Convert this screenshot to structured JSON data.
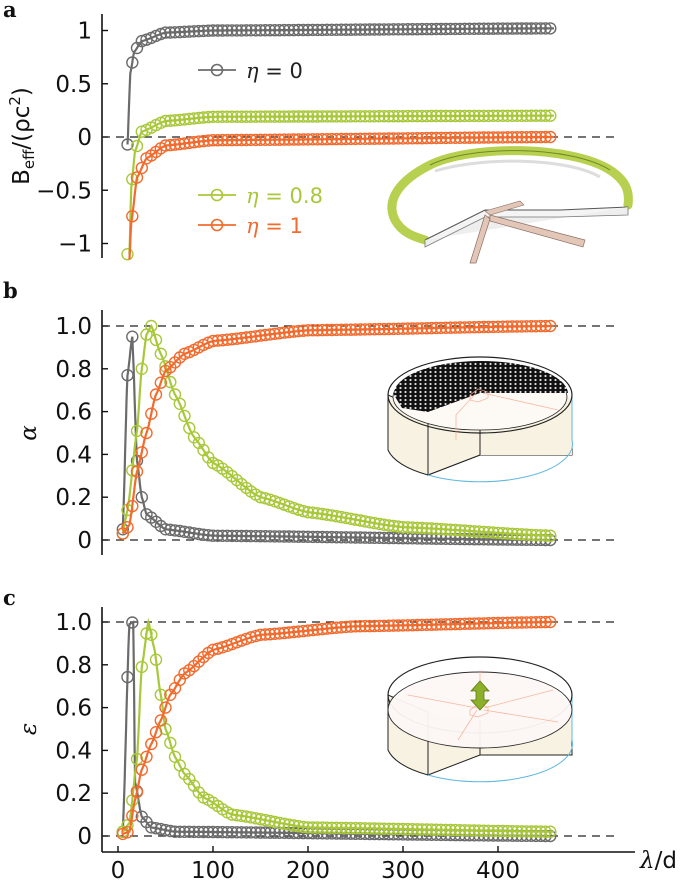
{
  "figure": {
    "panels": [
      {
        "letter": "a",
        "ylabel_main": "B",
        "ylabel_sub": "eff",
        "ylabel_rest": "/(ρc",
        "ylabel_sup": "2",
        "ylabel_close": ")"
      },
      {
        "letter": "b",
        "ylabel": "α"
      },
      {
        "letter": "c",
        "ylabel": "ε"
      }
    ],
    "xlabel": "λ/d",
    "legend": [
      {
        "label": "η = 0",
        "color": "#6b6b6b"
      },
      {
        "label": "η = 0.8",
        "color": "#a8c83a"
      },
      {
        "label": "η = 1",
        "color": "#f26b2e"
      }
    ],
    "colors": {
      "eta0": "#6b6b6b",
      "eta08": "#a8c83a",
      "eta1": "#f26b2e",
      "axis": "#111111",
      "ring_green": "#9bbb3a",
      "cylinder_fill": "#f8f2e2",
      "blue_edge": "#5fb8e0"
    }
  },
  "chart_data": [
    {
      "panel": "a",
      "type": "line",
      "title": "",
      "xlabel": "λ/d",
      "ylabel": "B_eff/(ρc^2)",
      "xlim": [
        0,
        460
      ],
      "ylim": [
        -1.15,
        1.15
      ],
      "yticks": [
        -1,
        -0.5,
        0,
        0.5,
        1
      ],
      "ytick_labels": [
        "−1",
        "−0.5",
        "0",
        "0.5",
        "1"
      ],
      "reference_lines": [
        0
      ],
      "legend_position": "inside, left-center",
      "series": [
        {
          "name": "η = 0",
          "style": "line (theory) + open circles (simulation)",
          "asymptote": 1.0,
          "approx_points": [
            [
              10,
              -0.07
            ],
            [
              13,
              0.6
            ],
            [
              17,
              0.8
            ],
            [
              25,
              0.9
            ],
            [
              50,
              0.98
            ],
            [
              100,
              1.0
            ],
            [
              455,
              1.02
            ]
          ]
        },
        {
          "name": "η = 0.8",
          "style": "line + open circles",
          "asymptote": 0.2,
          "approx_points": [
            [
              12,
              -1.1
            ],
            [
              14,
              -0.47
            ],
            [
              18,
              -0.13
            ],
            [
              25,
              0.05
            ],
            [
              50,
              0.15
            ],
            [
              100,
              0.19
            ],
            [
              455,
              0.2
            ]
          ]
        },
        {
          "name": "η = 1",
          "style": "line + open circles",
          "asymptote": 0.0,
          "approx_points": [
            [
              12,
              -1.15
            ],
            [
              14,
              -0.8
            ],
            [
              20,
              -0.38
            ],
            [
              30,
              -0.2
            ],
            [
              50,
              -0.08
            ],
            [
              100,
              -0.03
            ],
            [
              455,
              0.0
            ]
          ]
        }
      ]
    },
    {
      "panel": "b",
      "type": "line",
      "xlabel": "λ/d",
      "ylabel": "α",
      "xlim": [
        0,
        460
      ],
      "ylim": [
        -0.05,
        1.05
      ],
      "yticks": [
        0,
        0.2,
        0.4,
        0.6,
        0.8,
        1.0
      ],
      "ytick_labels": [
        "0",
        "0.2",
        "0.4",
        "0.6",
        "0.8",
        "1.0"
      ],
      "reference_lines": [
        0,
        1.0
      ],
      "series": [
        {
          "name": "η = 0",
          "peak": {
            "x": 15,
            "y": 0.97
          },
          "approx_points": [
            [
              5,
              0.05
            ],
            [
              10,
              0.77
            ],
            [
              15,
              0.95
            ],
            [
              20,
              0.37
            ],
            [
              25,
              0.2
            ],
            [
              30,
              0.12
            ],
            [
              50,
              0.05
            ],
            [
              100,
              0.02
            ],
            [
              455,
              0.0
            ]
          ]
        },
        {
          "name": "η = 0.8",
          "peak": {
            "x": 35,
            "y": 1.0
          },
          "approx_points": [
            [
              5,
              0.03
            ],
            [
              10,
              0.14
            ],
            [
              20,
              0.51
            ],
            [
              25,
              0.8
            ],
            [
              30,
              0.96
            ],
            [
              35,
              1.0
            ],
            [
              45,
              0.87
            ],
            [
              60,
              0.68
            ],
            [
              80,
              0.48
            ],
            [
              100,
              0.36
            ],
            [
              150,
              0.2
            ],
            [
              200,
              0.13
            ],
            [
              300,
              0.06
            ],
            [
              455,
              0.02
            ]
          ]
        },
        {
          "name": "η = 1",
          "approx_points": [
            [
              5,
              0.03
            ],
            [
              12,
              0.07
            ],
            [
              20,
              0.32
            ],
            [
              30,
              0.5
            ],
            [
              40,
              0.68
            ],
            [
              50,
              0.79
            ],
            [
              70,
              0.87
            ],
            [
              100,
              0.93
            ],
            [
              200,
              0.98
            ],
            [
              455,
              1.0
            ]
          ]
        }
      ]
    },
    {
      "panel": "c",
      "type": "line",
      "xlabel": "λ/d",
      "ylabel": "ε",
      "xlim": [
        0,
        460
      ],
      "xticks": [
        0,
        100,
        200,
        300,
        400
      ],
      "xtick_labels": [
        "0",
        "100",
        "200",
        "300",
        "400"
      ],
      "ylim": [
        -0.05,
        1.05
      ],
      "yticks": [
        0,
        0.2,
        0.4,
        0.6,
        0.8,
        1.0
      ],
      "ytick_labels": [
        "0",
        "0.2",
        "0.4",
        "0.6",
        "0.8",
        "1.0"
      ],
      "reference_lines": [
        0,
        1.0
      ],
      "series": [
        {
          "name": "η = 0",
          "peak": {
            "x": 16,
            "y": 1.0
          },
          "approx_points": [
            [
              5,
              0.02
            ],
            [
              12,
              0.99
            ],
            [
              16,
              1.0
            ],
            [
              18,
              0.25
            ],
            [
              25,
              0.09
            ],
            [
              35,
              0.04
            ],
            [
              60,
              0.02
            ],
            [
              455,
              0.0
            ]
          ]
        },
        {
          "name": "η = 0.8",
          "peak": {
            "x": 36,
            "y": 1.0
          },
          "approx_points": [
            [
              5,
              0.02
            ],
            [
              12,
              0.06
            ],
            [
              20,
              0.36
            ],
            [
              25,
              0.79
            ],
            [
              32,
              1.0
            ],
            [
              38,
              0.88
            ],
            [
              45,
              0.66
            ],
            [
              50,
              0.5
            ],
            [
              60,
              0.37
            ],
            [
              70,
              0.29
            ],
            [
              90,
              0.18
            ],
            [
              120,
              0.1
            ],
            [
              200,
              0.04
            ],
            [
              455,
              0.02
            ]
          ]
        },
        {
          "name": "η = 1",
          "approx_points": [
            [
              5,
              0.01
            ],
            [
              12,
              0.02
            ],
            [
              18,
              0.17
            ],
            [
              25,
              0.31
            ],
            [
              35,
              0.43
            ],
            [
              45,
              0.54
            ],
            [
              55,
              0.66
            ],
            [
              70,
              0.76
            ],
            [
              100,
              0.87
            ],
            [
              150,
              0.94
            ],
            [
              250,
              0.98
            ],
            [
              455,
              1.0
            ]
          ]
        }
      ]
    }
  ]
}
